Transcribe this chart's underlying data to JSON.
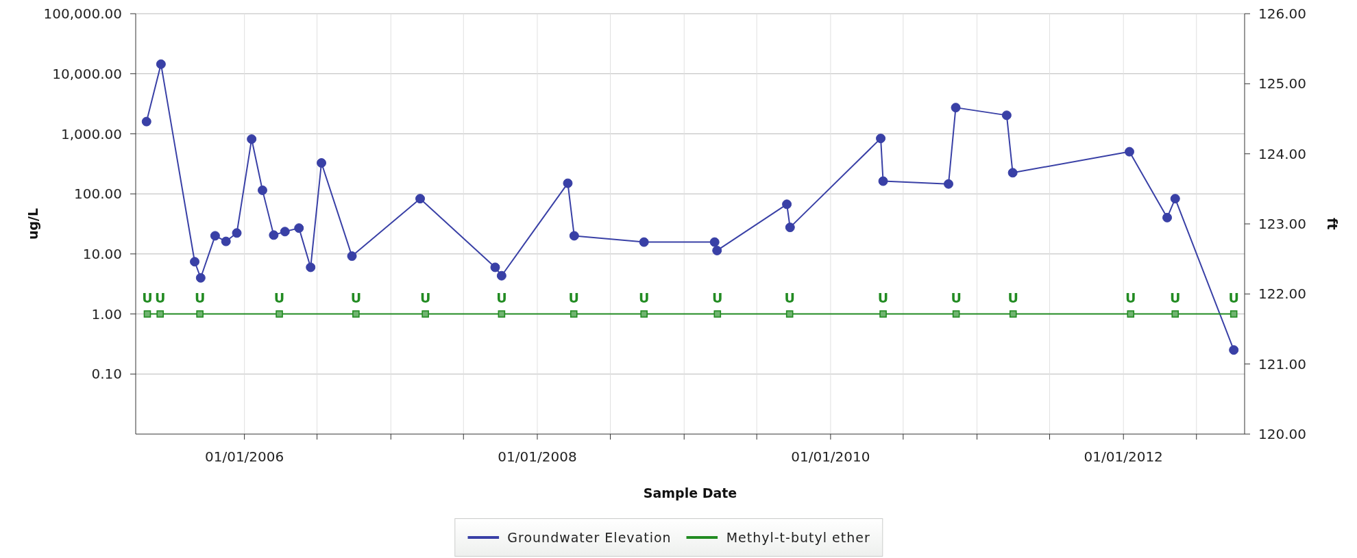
{
  "chart_data": {
    "type": "line",
    "xlabel": "Sample Date",
    "ylabel": "ug/L",
    "y2label": "ft",
    "log": "y",
    "grid": true,
    "legend": "bottom",
    "xlim": [
      "2005-04-05",
      "2012-10-29"
    ],
    "xticks": [
      {
        "value": "2006-01-01",
        "label": "01/01/2006"
      },
      {
        "value": "2006-07-01",
        "label": null
      },
      {
        "value": "2007-01-01",
        "label": null
      },
      {
        "value": "2007-07-01",
        "label": null
      },
      {
        "value": "2008-01-01",
        "label": "01/01/2008"
      },
      {
        "value": "2008-07-01",
        "label": null
      },
      {
        "value": "2009-01-01",
        "label": null
      },
      {
        "value": "2009-07-01",
        "label": null
      },
      {
        "value": "2010-01-01",
        "label": "01/01/2010"
      },
      {
        "value": "2010-07-01",
        "label": null
      },
      {
        "value": "2011-01-01",
        "label": null
      },
      {
        "value": "2011-07-01",
        "label": null
      },
      {
        "value": "2012-01-01",
        "label": "01/01/2012"
      },
      {
        "value": "2012-07-01",
        "label": null
      }
    ],
    "ylim": [
      0.01,
      100000
    ],
    "yticks": [
      {
        "value": 0.1,
        "label": "0.10"
      },
      {
        "value": 1,
        "label": "1.00"
      },
      {
        "value": 10,
        "label": "10.00"
      },
      {
        "value": 100,
        "label": "100.00"
      },
      {
        "value": 1000,
        "label": "1,000.00"
      },
      {
        "value": 10000,
        "label": "10,000.00"
      },
      {
        "value": 100000,
        "label": "100,000.00"
      }
    ],
    "y2lim": [
      120,
      126
    ],
    "y2ticks": [
      {
        "value": 120,
        "label": "120.00"
      },
      {
        "value": 121,
        "label": "121.00"
      },
      {
        "value": 122,
        "label": "122.00"
      },
      {
        "value": 123,
        "label": "123.00"
      },
      {
        "value": 124,
        "label": "124.00"
      },
      {
        "value": 125,
        "label": "125.00"
      },
      {
        "value": 126,
        "label": "126.00"
      }
    ],
    "series": [
      {
        "name": "Groundwater Elevation",
        "color": "#3940a6",
        "axis": "y2",
        "marker": "circle",
        "x": [
          "2005-05-02",
          "2005-06-07",
          "2005-08-30",
          "2005-09-14",
          "2005-10-20",
          "2005-11-16",
          "2005-12-13",
          "2006-01-19",
          "2006-02-15",
          "2006-03-15",
          "2006-04-12",
          "2006-05-17",
          "2006-06-15",
          "2006-07-12",
          "2006-09-26",
          "2007-03-15",
          "2007-09-18",
          "2007-10-04",
          "2008-03-17",
          "2008-04-02",
          "2008-09-23",
          "2009-03-18",
          "2009-03-24",
          "2009-09-14",
          "2009-09-22",
          "2010-05-06",
          "2010-05-12",
          "2010-10-22",
          "2010-11-09",
          "2011-03-16",
          "2011-03-31",
          "2012-01-16",
          "2012-04-19",
          "2012-05-09",
          "2012-10-02"
        ],
        "values": [
          124.46,
          125.28,
          122.46,
          122.23,
          122.83,
          122.75,
          122.87,
          124.21,
          123.48,
          122.84,
          122.89,
          122.94,
          122.38,
          123.87,
          122.54,
          123.36,
          122.38,
          122.26,
          123.58,
          122.83,
          122.74,
          122.74,
          122.62,
          123.28,
          122.95,
          124.22,
          123.61,
          123.57,
          124.66,
          124.55,
          123.73,
          124.03,
          123.09,
          123.36,
          121.2
        ]
      },
      {
        "name": "Methyl-t-butyl ether",
        "color": "#228b22",
        "axis": "y",
        "marker": "square",
        "x": [
          "2005-05-04",
          "2005-06-05",
          "2005-09-12",
          "2006-03-29",
          "2006-10-06",
          "2007-03-28",
          "2007-10-04",
          "2008-04-01",
          "2008-09-23",
          "2009-03-25",
          "2009-09-21",
          "2010-05-12",
          "2010-11-10",
          "2011-04-01",
          "2012-01-19",
          "2012-05-09",
          "2012-10-02"
        ],
        "values": [
          1,
          1,
          1,
          1,
          1,
          1,
          1,
          1,
          1,
          1,
          1,
          1,
          1,
          1,
          1,
          1,
          1
        ],
        "value_labels": [
          "U",
          "U",
          "U",
          "U",
          "U",
          "U",
          "U",
          "U",
          "U",
          "U",
          "U",
          "U",
          "U",
          "U",
          "U",
          "U",
          "U"
        ]
      }
    ]
  }
}
